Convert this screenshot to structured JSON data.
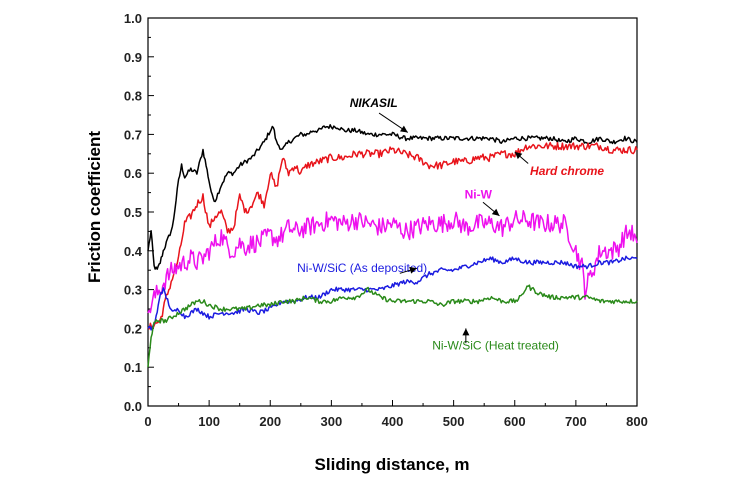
{
  "chart_data": {
    "type": "line",
    "title": "",
    "xlabel": "Sliding distance, m",
    "ylabel": "Friction coefficient",
    "xlim": [
      0,
      800
    ],
    "ylim": [
      0,
      1.0
    ],
    "x_ticks": [
      "0",
      "100",
      "200",
      "300",
      "400",
      "500",
      "600",
      "700",
      "800"
    ],
    "y_ticks": [
      "0.0",
      "0.1",
      "0.2",
      "0.3",
      "0.4",
      "0.5",
      "0.6",
      "0.7",
      "0.8",
      "0.9",
      "1.0"
    ],
    "grid": false,
    "legend": "inline labels with arrows",
    "series": [
      {
        "name": "NIKASIL",
        "color": "#000000",
        "label_style": "bold-italic",
        "x": [
          0,
          5,
          10,
          15,
          20,
          25,
          30,
          40,
          50,
          55,
          60,
          70,
          80,
          90,
          95,
          100,
          105,
          110,
          120,
          130,
          140,
          150,
          160,
          170,
          180,
          190,
          200,
          205,
          210,
          220,
          230,
          240,
          250,
          260,
          270,
          280,
          290,
          300,
          310,
          320,
          340,
          360,
          380,
          400,
          420,
          440,
          460,
          480,
          500,
          520,
          540,
          560,
          580,
          600,
          620,
          640,
          660,
          680,
          700,
          720,
          740,
          760,
          780,
          800
        ],
        "y": [
          0.4,
          0.45,
          0.36,
          0.35,
          0.37,
          0.4,
          0.42,
          0.46,
          0.58,
          0.62,
          0.59,
          0.61,
          0.6,
          0.66,
          0.62,
          0.58,
          0.54,
          0.53,
          0.57,
          0.6,
          0.6,
          0.62,
          0.63,
          0.64,
          0.66,
          0.68,
          0.71,
          0.72,
          0.68,
          0.66,
          0.68,
          0.69,
          0.7,
          0.7,
          0.71,
          0.71,
          0.72,
          0.72,
          0.72,
          0.71,
          0.71,
          0.7,
          0.7,
          0.7,
          0.69,
          0.69,
          0.69,
          0.69,
          0.69,
          0.69,
          0.69,
          0.69,
          0.68,
          0.69,
          0.69,
          0.69,
          0.69,
          0.68,
          0.69,
          0.68,
          0.69,
          0.68,
          0.69,
          0.68
        ]
      },
      {
        "name": "Hard chrome",
        "color": "#e8141b",
        "label_style": "bold-italic",
        "x": [
          0,
          10,
          20,
          25,
          30,
          40,
          50,
          60,
          70,
          80,
          90,
          100,
          110,
          120,
          130,
          140,
          150,
          160,
          170,
          180,
          190,
          200,
          210,
          220,
          230,
          240,
          250,
          260,
          280,
          300,
          320,
          340,
          360,
          380,
          400,
          420,
          440,
          460,
          480,
          500,
          520,
          540,
          560,
          580,
          600,
          620,
          640,
          660,
          680,
          700,
          720,
          740,
          760,
          780,
          800
        ],
        "y": [
          0.2,
          0.21,
          0.22,
          0.25,
          0.28,
          0.33,
          0.38,
          0.47,
          0.49,
          0.52,
          0.54,
          0.46,
          0.49,
          0.5,
          0.45,
          0.46,
          0.54,
          0.5,
          0.52,
          0.55,
          0.52,
          0.6,
          0.56,
          0.64,
          0.6,
          0.62,
          0.6,
          0.62,
          0.63,
          0.64,
          0.64,
          0.65,
          0.65,
          0.65,
          0.66,
          0.65,
          0.64,
          0.62,
          0.62,
          0.63,
          0.63,
          0.64,
          0.64,
          0.65,
          0.65,
          0.67,
          0.67,
          0.67,
          0.67,
          0.67,
          0.67,
          0.67,
          0.66,
          0.66,
          0.66
        ]
      },
      {
        "name": "Ni-W",
        "color": "#ee11ee",
        "label_style": "bold",
        "x": [
          0,
          10,
          20,
          30,
          40,
          50,
          60,
          70,
          80,
          90,
          100,
          110,
          120,
          130,
          140,
          150,
          160,
          170,
          180,
          190,
          200,
          210,
          220,
          230,
          240,
          260,
          280,
          300,
          320,
          340,
          360,
          380,
          400,
          420,
          440,
          460,
          480,
          500,
          520,
          540,
          560,
          580,
          600,
          620,
          640,
          660,
          680,
          690,
          700,
          710,
          715,
          720,
          740,
          750,
          760,
          770,
          780,
          790,
          800
        ],
        "y": [
          0.24,
          0.28,
          0.3,
          0.33,
          0.35,
          0.36,
          0.37,
          0.38,
          0.37,
          0.38,
          0.4,
          0.42,
          0.44,
          0.41,
          0.4,
          0.42,
          0.41,
          0.42,
          0.42,
          0.43,
          0.44,
          0.43,
          0.44,
          0.46,
          0.45,
          0.46,
          0.47,
          0.48,
          0.47,
          0.48,
          0.47,
          0.46,
          0.47,
          0.45,
          0.46,
          0.47,
          0.47,
          0.48,
          0.46,
          0.47,
          0.47,
          0.46,
          0.48,
          0.48,
          0.47,
          0.47,
          0.47,
          0.44,
          0.4,
          0.36,
          0.3,
          0.32,
          0.4,
          0.4,
          0.4,
          0.41,
          0.44,
          0.45,
          0.42
        ]
      },
      {
        "name": "Ni-W/SiC (As deposited)",
        "color": "#1c1ce0",
        "label_style": "normal",
        "x": [
          0,
          5,
          10,
          15,
          20,
          25,
          30,
          40,
          50,
          60,
          70,
          80,
          90,
          100,
          120,
          140,
          160,
          180,
          200,
          210,
          220,
          240,
          260,
          280,
          300,
          320,
          340,
          360,
          380,
          400,
          420,
          440,
          460,
          480,
          500,
          520,
          540,
          560,
          580,
          600,
          620,
          640,
          660,
          680,
          700,
          720,
          740,
          760,
          780,
          800
        ],
        "y": [
          0.2,
          0.2,
          0.21,
          0.24,
          0.29,
          0.3,
          0.28,
          0.24,
          0.25,
          0.23,
          0.24,
          0.25,
          0.24,
          0.23,
          0.24,
          0.24,
          0.25,
          0.24,
          0.25,
          0.26,
          0.27,
          0.27,
          0.28,
          0.28,
          0.3,
          0.3,
          0.3,
          0.3,
          0.3,
          0.31,
          0.32,
          0.32,
          0.34,
          0.35,
          0.35,
          0.36,
          0.37,
          0.38,
          0.37,
          0.38,
          0.37,
          0.37,
          0.37,
          0.37,
          0.36,
          0.36,
          0.37,
          0.37,
          0.38,
          0.38
        ]
      },
      {
        "name": "Ni-W/SiC (Heat treated)",
        "color": "#2a8a1a",
        "label_style": "normal",
        "x": [
          0,
          5,
          10,
          15,
          20,
          30,
          40,
          50,
          60,
          70,
          80,
          90,
          100,
          120,
          140,
          160,
          180,
          200,
          220,
          240,
          260,
          280,
          300,
          320,
          340,
          360,
          380,
          400,
          420,
          440,
          460,
          480,
          500,
          520,
          540,
          560,
          580,
          600,
          610,
          620,
          640,
          660,
          680,
          700,
          720,
          740,
          760,
          780,
          800
        ],
        "y": [
          0.1,
          0.18,
          0.21,
          0.22,
          0.22,
          0.22,
          0.23,
          0.24,
          0.25,
          0.26,
          0.27,
          0.27,
          0.26,
          0.25,
          0.25,
          0.25,
          0.26,
          0.26,
          0.27,
          0.27,
          0.28,
          0.27,
          0.27,
          0.28,
          0.28,
          0.3,
          0.28,
          0.27,
          0.27,
          0.27,
          0.27,
          0.26,
          0.27,
          0.27,
          0.27,
          0.28,
          0.27,
          0.27,
          0.28,
          0.31,
          0.29,
          0.28,
          0.28,
          0.28,
          0.28,
          0.27,
          0.27,
          0.27,
          0.27
        ]
      }
    ]
  }
}
